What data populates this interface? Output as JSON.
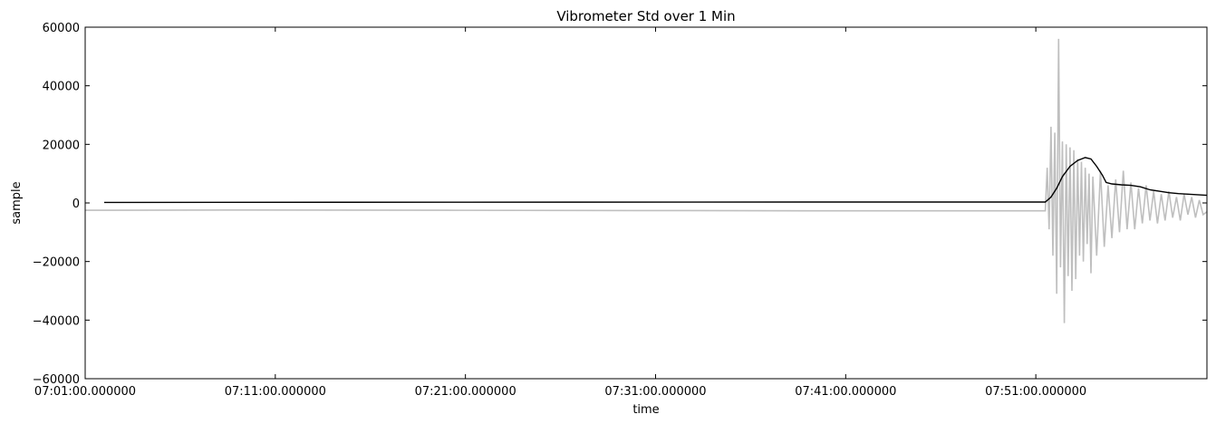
{
  "chart_data": {
    "type": "line",
    "title": "Vibrometer Std over 1 Min",
    "xlabel": "time",
    "ylabel": "sample",
    "ylim": [
      -60000,
      60000
    ],
    "xlim": [
      "07:01:00",
      "08:00:00"
    ],
    "grid": false,
    "x_ticks": [
      {
        "time": "07:01:00",
        "label": "07:01:00.000000"
      },
      {
        "time": "07:11:00",
        "label": "07:11:00.000000"
      },
      {
        "time": "07:21:00",
        "label": "07:21:00.000000"
      },
      {
        "time": "07:31:00",
        "label": "07:31:00.000000"
      },
      {
        "time": "07:41:00",
        "label": "07:41:00.000000"
      },
      {
        "time": "07:51:00",
        "label": "07:51:00.000000"
      }
    ],
    "y_ticks": [
      {
        "value": 60000,
        "label": "60000"
      },
      {
        "value": 40000,
        "label": "40000"
      },
      {
        "value": 20000,
        "label": "20000"
      },
      {
        "value": 0,
        "label": "0"
      },
      {
        "value": -20000,
        "label": "−20000"
      },
      {
        "value": -40000,
        "label": "−40000"
      },
      {
        "value": -60000,
        "label": "−60000"
      }
    ],
    "series": [
      {
        "color": "#bfbfbf",
        "style": "raw-signal",
        "points": [
          [
            "07:01:00",
            -2500
          ],
          [
            "07:10:00",
            -2400
          ],
          [
            "07:20:00",
            -2500
          ],
          [
            "07:30:00",
            -2600
          ],
          [
            "07:40:00",
            -2700
          ],
          [
            "07:51:30",
            -2700
          ],
          [
            "07:51:36",
            12000
          ],
          [
            "07:51:42",
            -9000
          ],
          [
            "07:51:48",
            26000
          ],
          [
            "07:51:54",
            -18000
          ],
          [
            "07:52:00",
            24000
          ],
          [
            "07:52:06",
            -31000
          ],
          [
            "07:52:12",
            56000
          ],
          [
            "07:52:18",
            -22000
          ],
          [
            "07:52:24",
            21000
          ],
          [
            "07:52:30",
            -41000
          ],
          [
            "07:52:36",
            20000
          ],
          [
            "07:52:42",
            -25000
          ],
          [
            "07:52:48",
            19000
          ],
          [
            "07:52:54",
            -30000
          ],
          [
            "07:53:00",
            18000
          ],
          [
            "07:53:06",
            -26000
          ],
          [
            "07:53:12",
            15000
          ],
          [
            "07:53:18",
            -18000
          ],
          [
            "07:53:24",
            14000
          ],
          [
            "07:53:30",
            -20000
          ],
          [
            "07:53:36",
            12000
          ],
          [
            "07:53:42",
            -14000
          ],
          [
            "07:53:48",
            10000
          ],
          [
            "07:53:54",
            -24000
          ],
          [
            "07:54:00",
            9000
          ],
          [
            "07:54:12",
            -18000
          ],
          [
            "07:54:24",
            11000
          ],
          [
            "07:54:36",
            -15000
          ],
          [
            "07:54:48",
            6000
          ],
          [
            "07:55:00",
            -12000
          ],
          [
            "07:55:12",
            8000
          ],
          [
            "07:55:24",
            -10000
          ],
          [
            "07:55:36",
            11000
          ],
          [
            "07:55:48",
            -9000
          ],
          [
            "07:56:00",
            7000
          ],
          [
            "07:56:12",
            -9000
          ],
          [
            "07:56:24",
            5000
          ],
          [
            "07:56:36",
            -7000
          ],
          [
            "07:56:48",
            6000
          ],
          [
            "07:57:00",
            -6000
          ],
          [
            "07:57:12",
            4000
          ],
          [
            "07:57:24",
            -7000
          ],
          [
            "07:57:36",
            3000
          ],
          [
            "07:57:48",
            -6000
          ],
          [
            "07:58:00",
            4000
          ],
          [
            "07:58:12",
            -5000
          ],
          [
            "07:58:24",
            2000
          ],
          [
            "07:58:36",
            -6000
          ],
          [
            "07:58:48",
            3000
          ],
          [
            "07:59:00",
            -4000
          ],
          [
            "07:59:12",
            2000
          ],
          [
            "07:59:24",
            -5000
          ],
          [
            "07:59:36",
            1000
          ],
          [
            "07:59:48",
            -4000
          ],
          [
            "08:00:00",
            -3000
          ]
        ]
      },
      {
        "color": "#000000",
        "style": "std",
        "points": [
          [
            "07:02:00",
            200
          ],
          [
            "07:20:00",
            250
          ],
          [
            "07:40:00",
            300
          ],
          [
            "07:51:30",
            300
          ],
          [
            "07:51:48",
            2000
          ],
          [
            "07:52:06",
            5000
          ],
          [
            "07:52:24",
            9000
          ],
          [
            "07:52:48",
            12500
          ],
          [
            "07:53:12",
            14500
          ],
          [
            "07:53:36",
            15500
          ],
          [
            "07:53:54",
            15000
          ],
          [
            "07:54:12",
            12500
          ],
          [
            "07:54:30",
            9500
          ],
          [
            "07:54:42",
            7000
          ],
          [
            "07:55:00",
            6500
          ],
          [
            "07:55:30",
            6200
          ],
          [
            "07:56:00",
            6000
          ],
          [
            "07:56:30",
            5500
          ],
          [
            "07:57:00",
            4500
          ],
          [
            "07:57:30",
            4000
          ],
          [
            "07:58:00",
            3500
          ],
          [
            "07:58:30",
            3200
          ],
          [
            "07:59:00",
            3000
          ],
          [
            "07:59:30",
            2800
          ],
          [
            "08:00:00",
            2600
          ]
        ]
      }
    ]
  }
}
